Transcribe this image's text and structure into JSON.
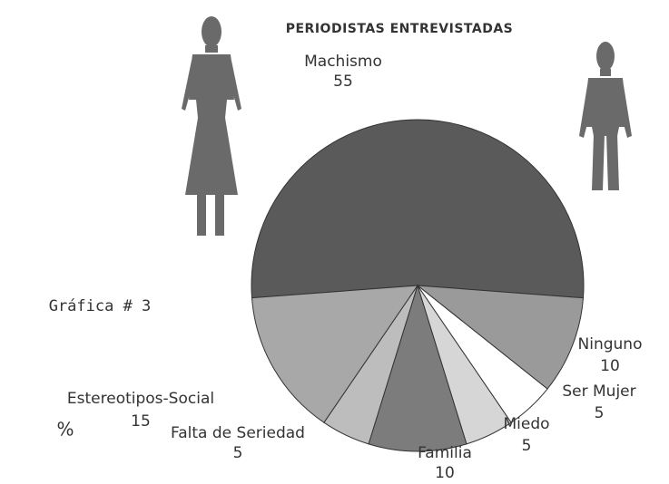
{
  "chart_data": {
    "type": "pie",
    "title": "PERIODISTAS ENTREVISTADAS",
    "subtitle": "Gráfica # 3",
    "unit_label": "%",
    "categories": [
      "Machismo",
      "Ninguno",
      "Ser Mujer",
      "Miedo",
      "Familia",
      "Falta de Seriedad",
      "Estereotipos-Social"
    ],
    "values": [
      55,
      10,
      5,
      5,
      10,
      5,
      15
    ],
    "colors": [
      "#5a5a5a",
      "#9a9a9a",
      "#ffffff",
      "#d6d6d6",
      "#7c7c7c",
      "#bdbdbd",
      "#a8a8a8"
    ]
  }
}
